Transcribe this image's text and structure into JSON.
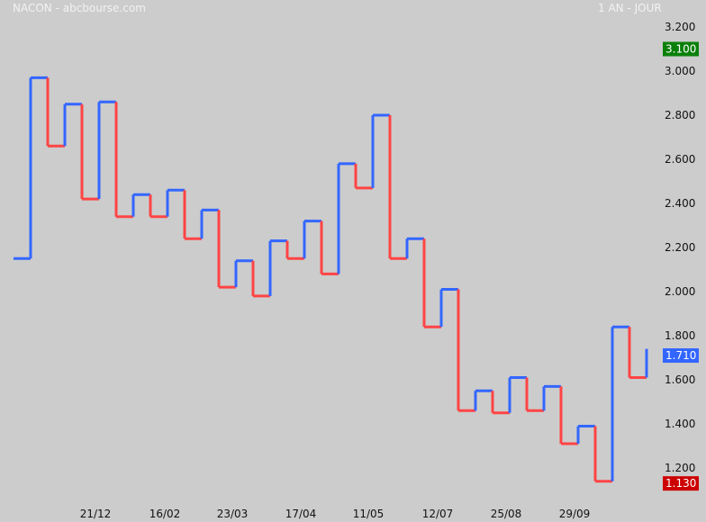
{
  "header": {
    "title": "NACON - abcbourse.com",
    "period": "1 AN - JOUR"
  },
  "colors": {
    "background": "#cccccc",
    "up": "#3366ff",
    "down": "#ff4444",
    "high_tag": "#0a800a",
    "last_tag": "#3366ff",
    "low_tag": "#cc0000"
  },
  "tags": {
    "high": "3.100",
    "last": "1.710",
    "low": "1.130"
  },
  "chart_data": {
    "type": "line",
    "style": "step",
    "title": "",
    "xlabel": "",
    "ylabel": "",
    "ylim": [
      1.05,
      3.25
    ],
    "y_ticks": [
      "1.200",
      "1.400",
      "1.600",
      "1.800",
      "2.000",
      "2.200",
      "2.400",
      "2.600",
      "2.800",
      "3.000",
      "3.200"
    ],
    "x_ticks": [
      "21/12",
      "16/02",
      "23/03",
      "17/04",
      "11/05",
      "12/07",
      "25/08",
      "29/09"
    ],
    "grid": false,
    "series": [
      {
        "values": [
          2.15,
          2.97,
          2.66,
          2.85,
          2.42,
          2.86,
          2.34,
          2.44,
          2.34,
          2.46,
          2.24,
          2.37,
          2.02,
          2.14,
          1.98,
          2.23,
          2.15,
          2.32,
          2.08,
          2.58,
          2.47,
          2.8,
          2.15,
          2.24,
          1.84,
          2.01,
          1.46,
          1.55,
          1.45,
          1.61,
          1.46,
          1.57,
          1.31,
          1.39,
          1.14,
          1.84,
          1.61,
          1.74
        ]
      }
    ]
  }
}
